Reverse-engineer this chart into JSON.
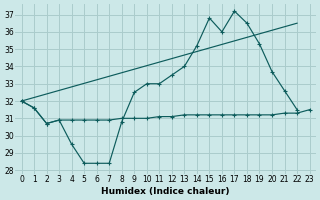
{
  "xlabel": "Humidex (Indice chaleur)",
  "background_color": "#cce8e8",
  "grid_color": "#aacccc",
  "line_color": "#0d5c5c",
  "xlim": [
    -0.5,
    23.5
  ],
  "ylim": [
    27.8,
    37.6
  ],
  "xticks": [
    0,
    1,
    2,
    3,
    4,
    5,
    6,
    7,
    8,
    9,
    10,
    11,
    12,
    13,
    14,
    15,
    16,
    17,
    18,
    19,
    20,
    21,
    22,
    23
  ],
  "yticks": [
    28,
    29,
    30,
    31,
    32,
    33,
    34,
    35,
    36,
    37
  ],
  "series1_x": [
    0,
    1,
    2,
    3,
    4,
    5,
    6,
    7,
    8,
    9,
    10,
    11,
    12,
    13,
    14,
    15,
    16,
    17,
    18,
    19,
    20,
    21,
    22
  ],
  "series1_y": [
    32.0,
    31.6,
    30.7,
    30.9,
    29.5,
    28.4,
    28.4,
    28.4,
    30.8,
    32.5,
    33.0,
    33.0,
    33.5,
    34.0,
    35.2,
    36.8,
    36.0,
    37.2,
    36.5,
    35.3,
    33.7,
    32.6,
    31.5
  ],
  "series2_x": [
    0,
    1,
    2,
    3,
    4,
    5,
    6,
    7,
    8,
    9,
    10,
    11,
    12,
    13,
    14,
    15,
    16,
    17,
    18,
    19,
    20,
    21,
    22,
    23
  ],
  "series2_y": [
    32.0,
    31.6,
    30.7,
    30.9,
    30.9,
    30.9,
    30.9,
    30.9,
    31.0,
    31.0,
    31.0,
    31.1,
    31.1,
    31.2,
    31.2,
    31.2,
    31.2,
    31.2,
    31.2,
    31.2,
    31.2,
    31.3,
    31.3,
    31.5
  ],
  "series3_x": [
    0,
    22
  ],
  "series3_y": [
    32.0,
    36.5
  ]
}
